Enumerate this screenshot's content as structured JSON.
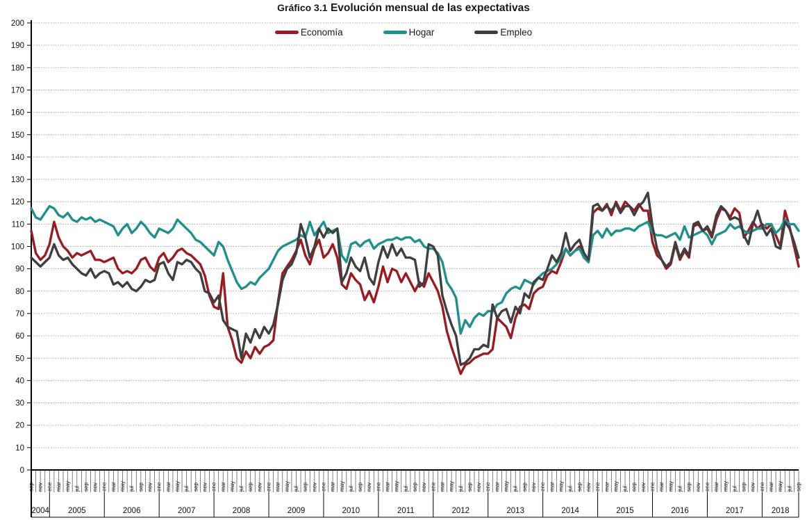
{
  "title": {
    "prefix": "Gráfico 3.1",
    "main": "Evolución mensual de las expectativas"
  },
  "legend": [
    {
      "label": "Economía",
      "color": "#9B1B21"
    },
    {
      "label": "Hogar",
      "color": "#1F918D"
    },
    {
      "label": "Empleo",
      "color": "#3F3F3F"
    }
  ],
  "chart_data": {
    "type": "line",
    "title": "Gráfico 3.1 Evolución mensual de las expectativas",
    "x_start": {
      "month": "sep",
      "year": 2004
    },
    "x_end": {
      "month": "sep",
      "year": 2018
    },
    "n_points": 169,
    "month_names": [
      "ene",
      "feb",
      "mar",
      "abr",
      "may",
      "jun",
      "jul",
      "ago",
      "sep",
      "oct",
      "nov",
      "dic"
    ],
    "x_tick_label_every": 2,
    "year_labels": [
      2004,
      2005,
      2006,
      2007,
      2008,
      2009,
      2010,
      2011,
      2012,
      2013,
      2014,
      2015,
      2016,
      2017,
      2018
    ],
    "ylim": [
      0,
      200
    ],
    "ytick_step": 10,
    "grid": "dotted-horizontal",
    "legend_position": "top-center",
    "series": [
      {
        "name": "Economía",
        "color": "#9B1B21",
        "values": [
          107,
          97,
          94,
          96,
          101,
          111,
          104,
          100,
          98,
          95,
          97,
          96,
          97,
          98,
          94,
          94,
          93,
          94,
          95,
          90,
          88,
          89,
          88,
          90,
          94,
          95,
          91,
          89,
          95,
          97,
          93,
          95,
          98,
          99,
          97,
          96,
          94,
          92,
          87,
          78,
          73,
          72,
          88,
          64,
          58,
          50,
          48,
          53,
          50,
          55,
          52,
          55,
          56,
          58,
          75,
          88,
          91,
          94,
          98,
          103,
          96,
          92,
          99,
          103,
          95,
          97,
          101,
          95,
          83,
          81,
          88,
          85,
          83,
          76,
          80,
          75,
          82,
          91,
          84,
          90,
          89,
          84,
          88,
          84,
          80,
          84,
          82,
          88,
          84,
          80,
          73,
          62,
          55,
          49,
          43,
          47,
          48,
          50,
          51,
          52,
          52,
          54,
          68,
          66,
          64,
          59,
          68,
          73,
          74,
          72,
          79,
          81,
          82,
          87,
          89,
          88,
          93,
          99,
          96,
          98,
          100,
          95,
          93,
          115,
          117,
          116,
          119,
          114,
          120,
          116,
          120,
          118,
          116,
          119,
          116,
          116,
          102,
          96,
          94,
          90,
          92,
          101,
          94,
          98,
          95,
          109,
          110,
          107,
          108,
          104,
          112,
          117,
          116,
          113,
          117,
          115,
          104,
          107,
          111,
          108,
          110,
          108,
          110,
          105,
          100,
          116,
          109,
          100,
          91
        ]
      },
      {
        "name": "Hogar",
        "color": "#1F918D",
        "values": [
          117,
          113,
          112,
          115,
          118,
          117,
          114,
          113,
          115,
          112,
          111,
          113,
          112,
          113,
          111,
          112,
          111,
          110,
          109,
          105,
          108,
          110,
          106,
          108,
          111,
          109,
          106,
          104,
          108,
          107,
          106,
          108,
          112,
          110,
          108,
          106,
          103,
          102,
          100,
          98,
          96,
          102,
          100,
          94,
          89,
          84,
          81,
          82,
          84,
          83,
          86,
          88,
          90,
          94,
          98,
          100,
          101,
          102,
          103,
          105,
          104,
          111,
          105,
          108,
          111,
          106,
          107,
          108,
          96,
          93,
          101,
          102,
          100,
          102,
          103,
          99,
          101,
          102,
          103,
          103,
          104,
          103,
          104,
          104,
          102,
          103,
          100,
          99,
          99,
          97,
          93,
          84,
          81,
          77,
          61,
          67,
          64,
          68,
          70,
          69,
          71,
          71,
          74,
          75,
          79,
          81,
          82,
          81,
          85,
          84,
          83,
          86,
          88,
          89,
          90,
          92,
          95,
          99,
          96,
          98,
          99,
          95,
          93,
          105,
          107,
          104,
          108,
          105,
          107,
          107,
          108,
          108,
          107,
          109,
          110,
          111,
          106,
          105,
          105,
          104,
          105,
          106,
          103,
          109,
          104,
          105,
          106,
          107,
          105,
          101,
          105,
          106,
          107,
          110,
          108,
          109,
          107,
          106,
          107,
          108,
          108,
          110,
          110,
          106,
          108,
          112,
          110,
          110,
          107
        ]
      },
      {
        "name": "Empleo",
        "color": "#3F3F3F",
        "values": [
          95,
          93,
          91,
          93,
          95,
          101,
          96,
          94,
          95,
          92,
          90,
          88,
          87,
          90,
          86,
          88,
          89,
          88,
          83,
          84,
          82,
          84,
          81,
          80,
          82,
          85,
          84,
          85,
          92,
          93,
          88,
          85,
          93,
          92,
          94,
          93,
          90,
          88,
          80,
          79,
          75,
          78,
          67,
          64,
          63,
          62,
          50,
          61,
          57,
          63,
          59,
          64,
          61,
          65,
          74,
          85,
          90,
          92,
          97,
          110,
          104,
          95,
          100,
          108,
          104,
          108,
          106,
          108,
          84,
          88,
          95,
          91,
          89,
          95,
          86,
          83,
          93,
          100,
          95,
          101,
          96,
          99,
          95,
          95,
          94,
          82,
          84,
          101,
          100,
          96,
          78,
          71,
          65,
          60,
          47,
          48,
          50,
          54,
          54,
          56,
          55,
          74,
          68,
          71,
          72,
          66,
          73,
          70,
          79,
          77,
          84,
          86,
          85,
          90,
          96,
          93,
          97,
          106,
          98,
          101,
          103,
          97,
          94,
          118,
          119,
          116,
          118,
          116,
          119,
          115,
          118,
          118,
          114,
          118,
          120,
          124,
          109,
          99,
          94,
          91,
          93,
          102,
          95,
          99,
          96,
          110,
          111,
          107,
          109,
          105,
          114,
          118,
          116,
          112,
          113,
          112,
          105,
          101,
          110,
          116,
          109,
          105,
          108,
          100,
          99,
          111,
          108,
          102,
          95
        ]
      }
    ]
  }
}
